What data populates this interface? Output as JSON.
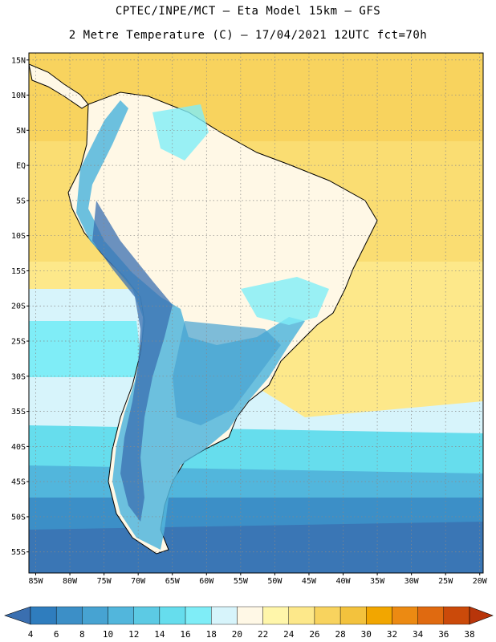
{
  "header": {
    "line1": "CPTEC/INPE/MCT –  Eta Model 15km – GFS",
    "line2": "2 Metre Temperature (C) – 17/04/2021 12UTC fct=70h"
  },
  "map": {
    "lat_ticks": [
      "15N",
      "10N",
      "5N",
      "EQ",
      "5S",
      "10S",
      "15S",
      "20S",
      "25S",
      "30S",
      "35S",
      "40S",
      "45S",
      "50S",
      "55S"
    ],
    "lon_ticks": [
      "85W",
      "80W",
      "75W",
      "70W",
      "65W",
      "60W",
      "55W",
      "50W",
      "45W",
      "40W",
      "35W",
      "30W",
      "25W",
      "20W"
    ],
    "extent": {
      "lon_min": -86,
      "lon_max": -19.5,
      "lat_min": -58,
      "lat_max": 16
    },
    "grid": true
  },
  "colorbar": {
    "labels": [
      "4",
      "6",
      "8",
      "10",
      "12",
      "14",
      "16",
      "18",
      "20",
      "22",
      "24",
      "26",
      "28",
      "30",
      "32",
      "34",
      "36",
      "38"
    ],
    "colors": [
      "#3a6fb0",
      "#2f7dbe",
      "#3c8fc7",
      "#47a3d2",
      "#52b6dc",
      "#5ccae4",
      "#66dded",
      "#7fedf7",
      "#d7f4fb",
      "#fff8e6",
      "#fff6aa",
      "#fde88a",
      "#f8d35e",
      "#f3c23d",
      "#f2a600",
      "#ec8a12",
      "#e06a10",
      "#cb4a0a",
      "#b8350a"
    ]
  }
}
